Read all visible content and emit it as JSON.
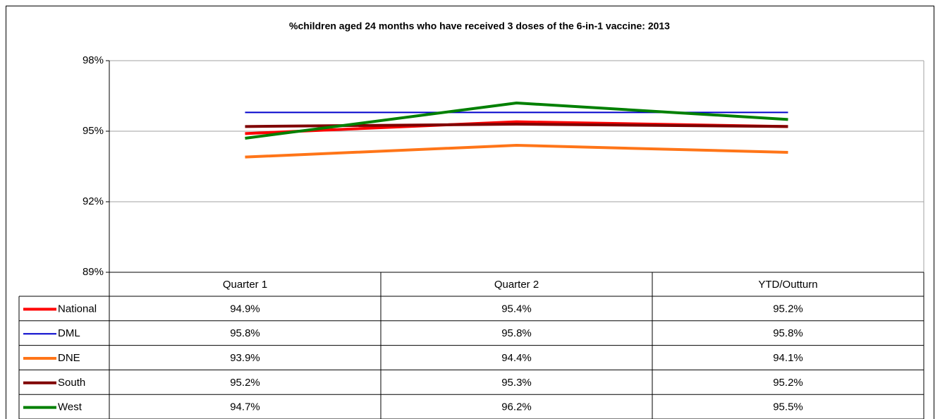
{
  "chart_data": {
    "type": "line",
    "title": "%children aged 24 months who have received 3 doses of the 6-in-1 vaccine: 2013",
    "categories": [
      "Quarter 1",
      "Quarter 2",
      "YTD/Outturn"
    ],
    "series": [
      {
        "name": "National",
        "color": "#ff0000",
        "line_width": 4,
        "values": [
          94.9,
          95.4,
          95.2
        ],
        "value_labels": [
          "94.9%",
          "95.4%",
          "95.2%"
        ]
      },
      {
        "name": "DML",
        "color": "#0000cc",
        "line_width": 2,
        "values": [
          95.8,
          95.8,
          95.8
        ],
        "value_labels": [
          "95.8%",
          "95.8%",
          "95.8%"
        ]
      },
      {
        "name": "DNE",
        "color": "#ff7518",
        "line_width": 4,
        "values": [
          93.9,
          94.4,
          94.1
        ],
        "value_labels": [
          "93.9%",
          "94.4%",
          "94.1%"
        ]
      },
      {
        "name": "South",
        "color": "#800000",
        "line_width": 4,
        "values": [
          95.2,
          95.3,
          95.2
        ],
        "value_labels": [
          "95.2%",
          "95.3%",
          "95.2%"
        ]
      },
      {
        "name": "West",
        "color": "#008000",
        "line_width": 4,
        "values": [
          94.7,
          96.2,
          95.5
        ],
        "value_labels": [
          "94.7%",
          "96.2%",
          "95.5%"
        ]
      }
    ],
    "ylim": [
      89,
      98
    ],
    "yticks": [
      {
        "value": 89,
        "label": "89%"
      },
      {
        "value": 92,
        "label": "92%"
      },
      {
        "value": 95,
        "label": "95%"
      },
      {
        "value": 98,
        "label": "98%"
      }
    ],
    "grid": true
  }
}
